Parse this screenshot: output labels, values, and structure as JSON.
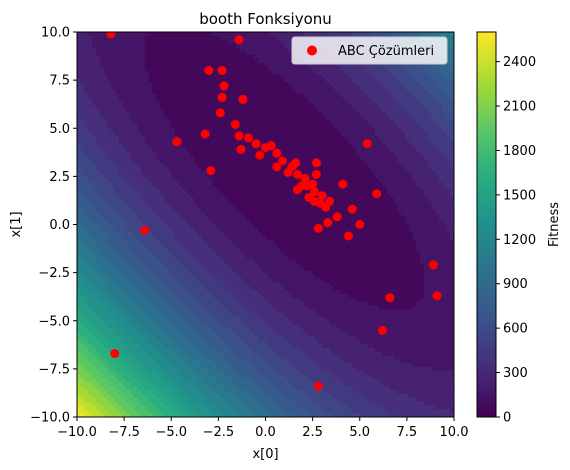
{
  "chart_data": {
    "type": "scatter",
    "title": "booth Fonksiyonu",
    "xlabel": "x[0]",
    "ylabel": "x[1]",
    "xlim": [
      -10,
      10
    ],
    "ylim": [
      -10,
      10
    ],
    "xticks": [
      "−10.0",
      "−7.5",
      "−5.0",
      "−2.5",
      "0.0",
      "2.5",
      "5.0",
      "7.5",
      "10.0"
    ],
    "yticks": [
      "−10.0",
      "−7.5",
      "−5.0",
      "−2.5",
      "0.0",
      "2.5",
      "5.0",
      "7.5",
      "10.0"
    ],
    "xtick_values": [
      -10,
      -7.5,
      -5,
      -2.5,
      0,
      2.5,
      5,
      7.5,
      10
    ],
    "ytick_values": [
      -10,
      -7.5,
      -5,
      -2.5,
      0,
      2.5,
      5,
      7.5,
      10
    ],
    "background": {
      "type": "filled-contour",
      "function": "booth",
      "colormap": "viridis",
      "vmin": 0,
      "vmax": 2600
    },
    "colorbar": {
      "label": "Fitness",
      "ticks": [
        "0",
        "300",
        "600",
        "900",
        "1200",
        "1500",
        "1800",
        "2100",
        "2400"
      ],
      "tick_values": [
        0,
        300,
        600,
        900,
        1200,
        1500,
        1800,
        2100,
        2400
      ]
    },
    "legend": {
      "placement": "top-right",
      "entries": [
        "ABC Çözümleri"
      ]
    },
    "series": [
      {
        "name": "ABC Çözümleri",
        "color": "#ff0000",
        "points": [
          [
            -8.2,
            9.9
          ],
          [
            -1.4,
            9.6
          ],
          [
            -3.0,
            8.0
          ],
          [
            -2.3,
            8.0
          ],
          [
            -2.2,
            7.2
          ],
          [
            -1.2,
            6.5
          ],
          [
            -2.3,
            6.6
          ],
          [
            -2.4,
            5.8
          ],
          [
            -1.6,
            5.2
          ],
          [
            -3.2,
            4.7
          ],
          [
            -1.4,
            4.6
          ],
          [
            -0.9,
            4.5
          ],
          [
            -4.7,
            4.3
          ],
          [
            -0.5,
            4.2
          ],
          [
            -1.3,
            3.9
          ],
          [
            0.0,
            4.0
          ],
          [
            0.3,
            4.1
          ],
          [
            -0.3,
            3.6
          ],
          [
            0.6,
            3.7
          ],
          [
            0.9,
            3.3
          ],
          [
            0.6,
            3.0
          ],
          [
            1.4,
            3.0
          ],
          [
            1.6,
            3.2
          ],
          [
            1.2,
            2.7
          ],
          [
            1.7,
            2.6
          ],
          [
            2.1,
            2.4
          ],
          [
            2.7,
            3.2
          ],
          [
            2.7,
            2.6
          ],
          [
            2.5,
            2.1
          ],
          [
            1.9,
            2.0
          ],
          [
            2.2,
            2.0
          ],
          [
            1.7,
            1.8
          ],
          [
            2.6,
            1.7
          ],
          [
            2.3,
            1.4
          ],
          [
            3.0,
            1.5
          ],
          [
            3.4,
            1.2
          ],
          [
            2.9,
            1.1
          ],
          [
            3.2,
            0.9
          ],
          [
            2.6,
            1.2
          ],
          [
            5.4,
            4.2
          ],
          [
            4.1,
            2.1
          ],
          [
            5.9,
            1.6
          ],
          [
            4.6,
            0.8
          ],
          [
            3.8,
            0.4
          ],
          [
            3.3,
            0.1
          ],
          [
            2.8,
            -0.2
          ],
          [
            5.0,
            0.0
          ],
          [
            4.4,
            -0.6
          ],
          [
            -2.9,
            2.8
          ],
          [
            -6.4,
            -0.3
          ],
          [
            8.9,
            -2.1
          ],
          [
            9.1,
            -3.7
          ],
          [
            6.6,
            -3.8
          ],
          [
            6.2,
            -5.5
          ],
          [
            -8.0,
            -6.7
          ],
          [
            2.8,
            -8.4
          ]
        ]
      }
    ]
  }
}
